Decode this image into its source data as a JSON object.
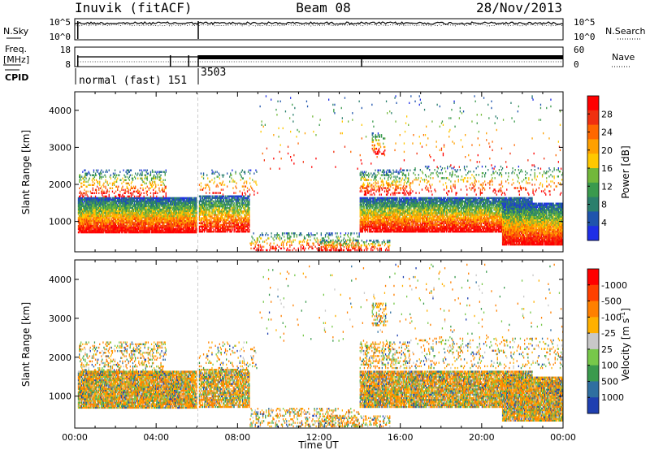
{
  "header": {
    "station": "Inuvik (fitACF)",
    "beam": "Beam 08",
    "date": "28/Nov/2013"
  },
  "chart_data": [
    {
      "type": "line",
      "panel": "noise",
      "left_label": "N.Sky",
      "right_label": "N.Search",
      "left_ticks": [
        "10^5",
        "10^0"
      ],
      "right_ticks": [
        "10^5",
        "10^0"
      ],
      "series": [
        {
          "name": "N.Sky",
          "style": "solid",
          "level": 0.84
        },
        {
          "name": "N.Search",
          "style": "dotted",
          "level": 0.7
        }
      ],
      "dropouts_hours": [
        0.15,
        6.07
      ]
    },
    {
      "type": "line",
      "panel": "frequency",
      "left_label_top": "Freq.",
      "left_label_bottom": "[MHz]",
      "right_label": "Nave",
      "left_ticks": [
        "18",
        "8"
      ],
      "right_ticks": [
        "60",
        "0"
      ],
      "series": [
        {
          "name": "Freq.",
          "style": "solid"
        },
        {
          "name": "Nave",
          "style": "dotted"
        }
      ],
      "dropouts_hours": [
        0.15,
        4.7,
        5.6,
        6.07,
        14.1
      ]
    },
    {
      "type": "table",
      "panel": "cpid",
      "label": "CPID",
      "segments": [
        {
          "start_hour": 0.15,
          "text": "normal (fast) 151"
        },
        {
          "start_hour": 6.07,
          "text": "3503"
        }
      ]
    },
    {
      "type": "heatmap",
      "panel": "power",
      "ylabel": "Slant Range [km]",
      "ylim": [
        180,
        4500
      ],
      "yticks": [
        1000,
        2000,
        3000,
        4000
      ],
      "xlim": [
        0,
        24
      ],
      "colorbar": {
        "label": "Power [dB]",
        "ticks": [
          "4",
          "8",
          "12",
          "16",
          "20",
          "24",
          "28"
        ],
        "colors": [
          "#1e2ee6",
          "#1f54ad",
          "#2a7f6c",
          "#3a9a4d",
          "#72b83a",
          "#ffc800",
          "#ffa000",
          "#ff6800",
          "#f03010",
          "#ff0000"
        ]
      }
    },
    {
      "type": "heatmap",
      "panel": "velocity",
      "ylabel": "Slant Range [km]",
      "ylim": [
        180,
        4500
      ],
      "yticks": [
        1000,
        2000,
        3000,
        4000
      ],
      "xlim": [
        0,
        24
      ],
      "xticks": [
        "00:00",
        "04:00",
        "08:00",
        "12:00",
        "16:00",
        "20:00",
        "00:00"
      ],
      "xlabel": "Time UT",
      "colorbar": {
        "label": "Velocity [m s",
        "label_sup": "-1",
        "label_end": "]",
        "ticks": [
          "1000",
          "500",
          "100",
          "25",
          "-25",
          "-100",
          "-500",
          "-1000"
        ],
        "colors": [
          "#1f3fb0",
          "#2f6fa0",
          "#3a9a4d",
          "#77c84a",
          "#c8c8c8",
          "#ffb000",
          "#ff8000",
          "#ff4000",
          "#ff0000"
        ]
      }
    }
  ]
}
